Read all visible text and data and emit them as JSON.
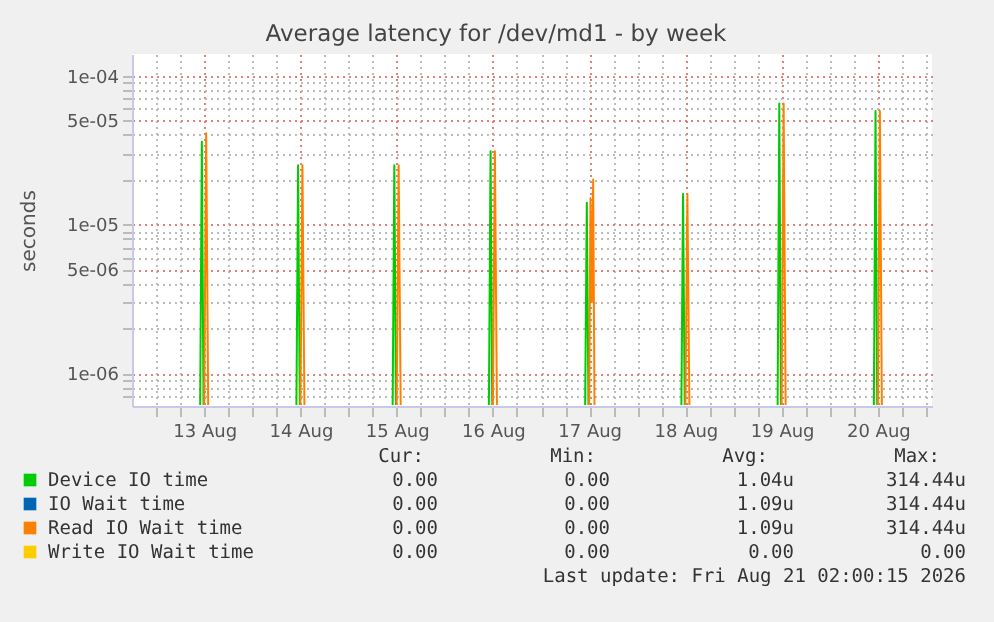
{
  "chart_data": {
    "type": "line",
    "title": "Average latency for /dev/md1 - by week",
    "ylabel": "seconds",
    "log": true,
    "grid": true,
    "legend": "bottom",
    "line_style": "solid",
    "x": [
      "2026-08-13T00:00",
      "2026-08-13T00:30",
      "2026-08-13T01:00",
      "2026-08-13T12:00",
      "2026-08-14T00:00",
      "2026-08-14T00:30",
      "2026-08-14T01:00",
      "2026-08-14T12:00",
      "2026-08-15T00:00",
      "2026-08-15T00:30",
      "2026-08-15T01:00",
      "2026-08-15T12:00",
      "2026-08-16T00:00",
      "2026-08-16T00:30",
      "2026-08-16T01:00",
      "2026-08-16T12:00",
      "2026-08-17T00:00",
      "2026-08-17T00:20",
      "2026-08-17T00:40",
      "2026-08-17T01:00",
      "2026-08-17T01:20",
      "2026-08-17T12:00",
      "2026-08-18T00:00",
      "2026-08-18T00:30",
      "2026-08-18T01:00",
      "2026-08-18T12:00",
      "2026-08-19T00:00",
      "2026-08-19T00:30",
      "2026-08-19T01:00",
      "2026-08-19T12:00",
      "2026-08-20T00:00",
      "2026-08-20T00:30",
      "2026-08-20T01:00"
    ],
    "series": [
      {
        "name": "Device IO time",
        "color": "#00cc00",
        "x": [
          "2026-08-12T23:00",
          "2026-08-12T23:25",
          "2026-08-12T23:50",
          "2026-08-13T12:00",
          "2026-08-13T23:00",
          "2026-08-13T23:25",
          "2026-08-13T23:50",
          "2026-08-14T12:00",
          "2026-08-14T23:00",
          "2026-08-14T23:25",
          "2026-08-14T23:50",
          "2026-08-15T12:00",
          "2026-08-15T23:00",
          "2026-08-15T23:25",
          "2026-08-15T23:50",
          "2026-08-16T12:00",
          "2026-08-16T23:00",
          "2026-08-16T23:25",
          "2026-08-16T23:50",
          "2026-08-17T12:00",
          "2026-08-17T23:00",
          "2026-08-17T23:25",
          "2026-08-17T23:50",
          "2026-08-18T12:00",
          "2026-08-18T23:00",
          "2026-08-18T23:25",
          "2026-08-18T23:50",
          "2026-08-19T12:00",
          "2026-08-19T23:00",
          "2026-08-19T23:25",
          "2026-08-19T23:50"
        ],
        "values": [
          6.1e-07,
          3.6e-05,
          6.1e-07,
          null,
          6.1e-07,
          2.5e-05,
          6.1e-07,
          null,
          6.1e-07,
          2.5e-05,
          6.1e-07,
          null,
          6.1e-07,
          3.1e-05,
          6.1e-07,
          null,
          6.1e-07,
          1.4e-05,
          6.1e-07,
          null,
          6.1e-07,
          1.6e-05,
          6.1e-07,
          null,
          6.1e-07,
          6.5e-05,
          6.1e-07,
          null,
          6.1e-07,
          5.8e-05,
          6.1e-07
        ]
      },
      {
        "name": "IO Wait time",
        "color": "#0066b3",
        "values": [
          null,
          null,
          null,
          null,
          null,
          null,
          null,
          null,
          null,
          null,
          null,
          null,
          null,
          null,
          null,
          null,
          null,
          null,
          null,
          null,
          null,
          null,
          null,
          null,
          null,
          null,
          null,
          null,
          null,
          null,
          null,
          null,
          null
        ]
      },
      {
        "name": "Read IO Wait time",
        "color": "#ff8000",
        "values": [
          6.1e-07,
          4.1e-05,
          6.1e-07,
          null,
          6.1e-07,
          2.5e-05,
          6.1e-07,
          null,
          6.1e-07,
          2.5e-05,
          6.1e-07,
          null,
          6.1e-07,
          3.1e-05,
          6.1e-07,
          null,
          6.1e-07,
          1.5e-05,
          3e-06,
          2e-05,
          6.1e-07,
          null,
          6.1e-07,
          1.6e-05,
          6.1e-07,
          null,
          6.1e-07,
          6.5e-05,
          6.1e-07,
          null,
          6.1e-07,
          5.8e-05,
          6.1e-07
        ]
      },
      {
        "name": "Write IO Wait time",
        "color": "#ffcc00",
        "values": [
          null,
          null,
          null,
          null,
          null,
          null,
          null,
          null,
          null,
          null,
          null,
          null,
          null,
          null,
          null,
          null,
          null,
          null,
          null,
          null,
          null,
          null,
          null,
          null,
          null,
          null,
          null,
          null,
          null,
          null,
          null,
          null,
          null
        ]
      }
    ],
    "xlim": [
      "2026-08-12T06:00",
      "2026-08-20T13:30"
    ],
    "xticks": [
      {
        "value": "2026-08-12T12:00",
        "label": null
      },
      {
        "value": "2026-08-12T18:00",
        "label": null
      },
      {
        "value": "2026-08-13",
        "label": "13 Aug"
      },
      {
        "value": "2026-08-13T06:00",
        "label": null
      },
      {
        "value": "2026-08-13T12:00",
        "label": null
      },
      {
        "value": "2026-08-13T18:00",
        "label": null
      },
      {
        "value": "2026-08-14",
        "label": "14 Aug"
      },
      {
        "value": "2026-08-14T06:00",
        "label": null
      },
      {
        "value": "2026-08-14T12:00",
        "label": null
      },
      {
        "value": "2026-08-14T18:00",
        "label": null
      },
      {
        "value": "2026-08-15",
        "label": "15 Aug"
      },
      {
        "value": "2026-08-15T06:00",
        "label": null
      },
      {
        "value": "2026-08-15T12:00",
        "label": null
      },
      {
        "value": "2026-08-15T18:00",
        "label": null
      },
      {
        "value": "2026-08-16",
        "label": "16 Aug"
      },
      {
        "value": "2026-08-16T06:00",
        "label": null
      },
      {
        "value": "2026-08-16T12:00",
        "label": null
      },
      {
        "value": "2026-08-16T18:00",
        "label": null
      },
      {
        "value": "2026-08-17",
        "label": "17 Aug"
      },
      {
        "value": "2026-08-17T06:00",
        "label": null
      },
      {
        "value": "2026-08-17T12:00",
        "label": null
      },
      {
        "value": "2026-08-17T18:00",
        "label": null
      },
      {
        "value": "2026-08-18",
        "label": "18 Aug"
      },
      {
        "value": "2026-08-18T06:00",
        "label": null
      },
      {
        "value": "2026-08-18T12:00",
        "label": null
      },
      {
        "value": "2026-08-18T18:00",
        "label": null
      },
      {
        "value": "2026-08-19",
        "label": "19 Aug"
      },
      {
        "value": "2026-08-19T06:00",
        "label": null
      },
      {
        "value": "2026-08-19T12:00",
        "label": null
      },
      {
        "value": "2026-08-19T18:00",
        "label": null
      },
      {
        "value": "2026-08-20",
        "label": "20 Aug"
      },
      {
        "value": "2026-08-20T06:00",
        "label": null
      },
      {
        "value": "2026-08-20T12:00",
        "label": null
      }
    ],
    "ylim": [
      6e-07,
      0.00014
    ],
    "yticks": [
      {
        "value": 7e-07,
        "label": null
      },
      {
        "value": 8e-07,
        "label": null
      },
      {
        "value": 9e-07,
        "label": null
      },
      {
        "value": 1e-06,
        "label": "1e-06"
      },
      {
        "value": 2e-06,
        "label": null
      },
      {
        "value": 3e-06,
        "label": null
      },
      {
        "value": 4e-06,
        "label": null
      },
      {
        "value": 5e-06,
        "label": "5e-06"
      },
      {
        "value": 6e-06,
        "label": null
      },
      {
        "value": 7e-06,
        "label": null
      },
      {
        "value": 8e-06,
        "label": null
      },
      {
        "value": 9e-06,
        "label": null
      },
      {
        "value": 1e-05,
        "label": "1e-05"
      },
      {
        "value": 2e-05,
        "label": null
      },
      {
        "value": 3e-05,
        "label": null
      },
      {
        "value": 4e-05,
        "label": null
      },
      {
        "value": 5e-05,
        "label": "5e-05"
      },
      {
        "value": 6e-05,
        "label": null
      },
      {
        "value": 7e-05,
        "label": null
      },
      {
        "value": 8e-05,
        "label": null
      },
      {
        "value": 9e-05,
        "label": null
      },
      {
        "value": 0.0001,
        "label": "1e-04"
      }
    ],
    "annotations": [
      "Cur:",
      "Min:",
      "Avg:",
      "Max:",
      "0.00",
      "0.00",
      "1.04u",
      "314.44u",
      "0.00",
      "0.00",
      "1.09u",
      "314.44u",
      "0.00",
      "0.00",
      "1.09u",
      "314.44u",
      "0.00",
      "0.00",
      "0.00",
      "0.00",
      "Last update: Fri Aug 21 02:00:15 2026"
    ]
  }
}
